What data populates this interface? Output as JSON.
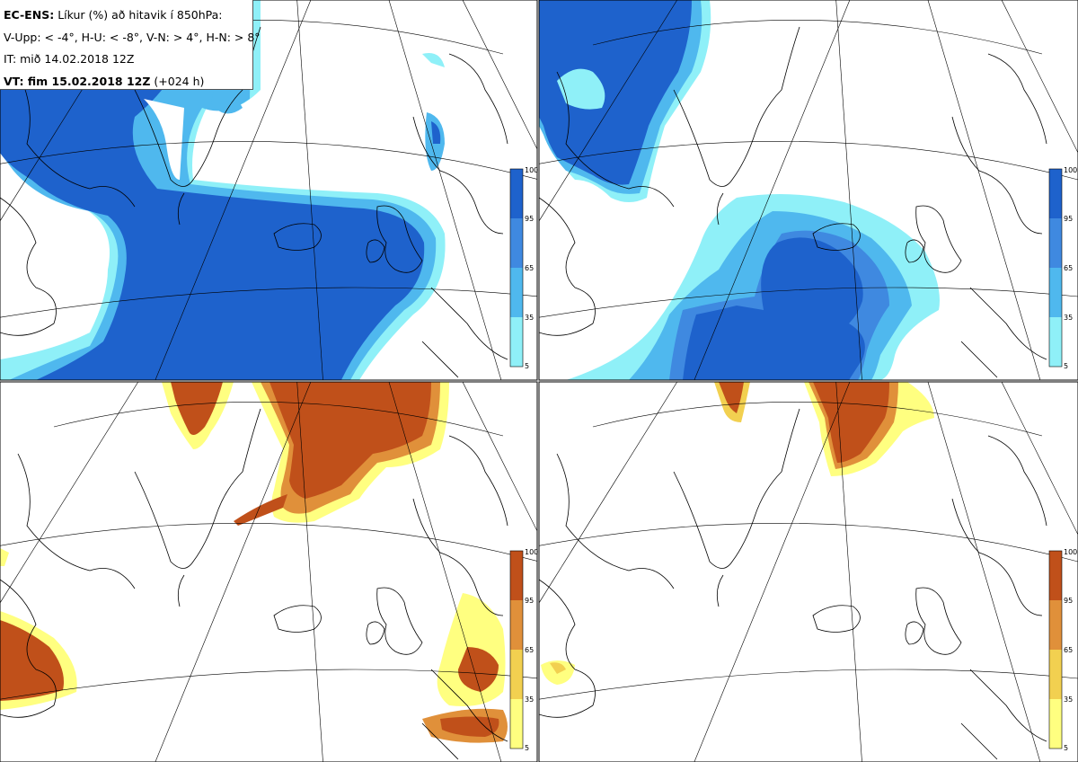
{
  "header": {
    "model_label": "EC-ENS:",
    "description": "Líkur (%) að hitavik í 850hPa:",
    "thresholds": "V-Upp: < -4°, H-U: < -8°, V-N: > 4°, H-N: > 8°",
    "initial_time": "IT: mið 14.02.2018 12Z",
    "valid_label": "VT: fim 15.02.2018 12Z",
    "valid_lead": "(+024 h)"
  },
  "panels": [
    {
      "name": "V-Upp",
      "condition": "< -4°",
      "colorscale": "blue"
    },
    {
      "name": "H-U",
      "condition": "< -8°",
      "colorscale": "blue"
    },
    {
      "name": "V-N",
      "condition": "> 4°",
      "colorscale": "orange"
    },
    {
      "name": "H-N",
      "condition": "> 8°",
      "colorscale": "orange"
    }
  ],
  "colorbar": {
    "ticks": [
      "100",
      "95",
      "65",
      "35",
      "5"
    ],
    "blue_colors": [
      "#1e62cc",
      "#3f89e0",
      "#4fb8ee",
      "#8ff0f8"
    ],
    "orange_colors": [
      "#c0501a",
      "#e0903a",
      "#f2d050",
      "#ffff80"
    ]
  }
}
